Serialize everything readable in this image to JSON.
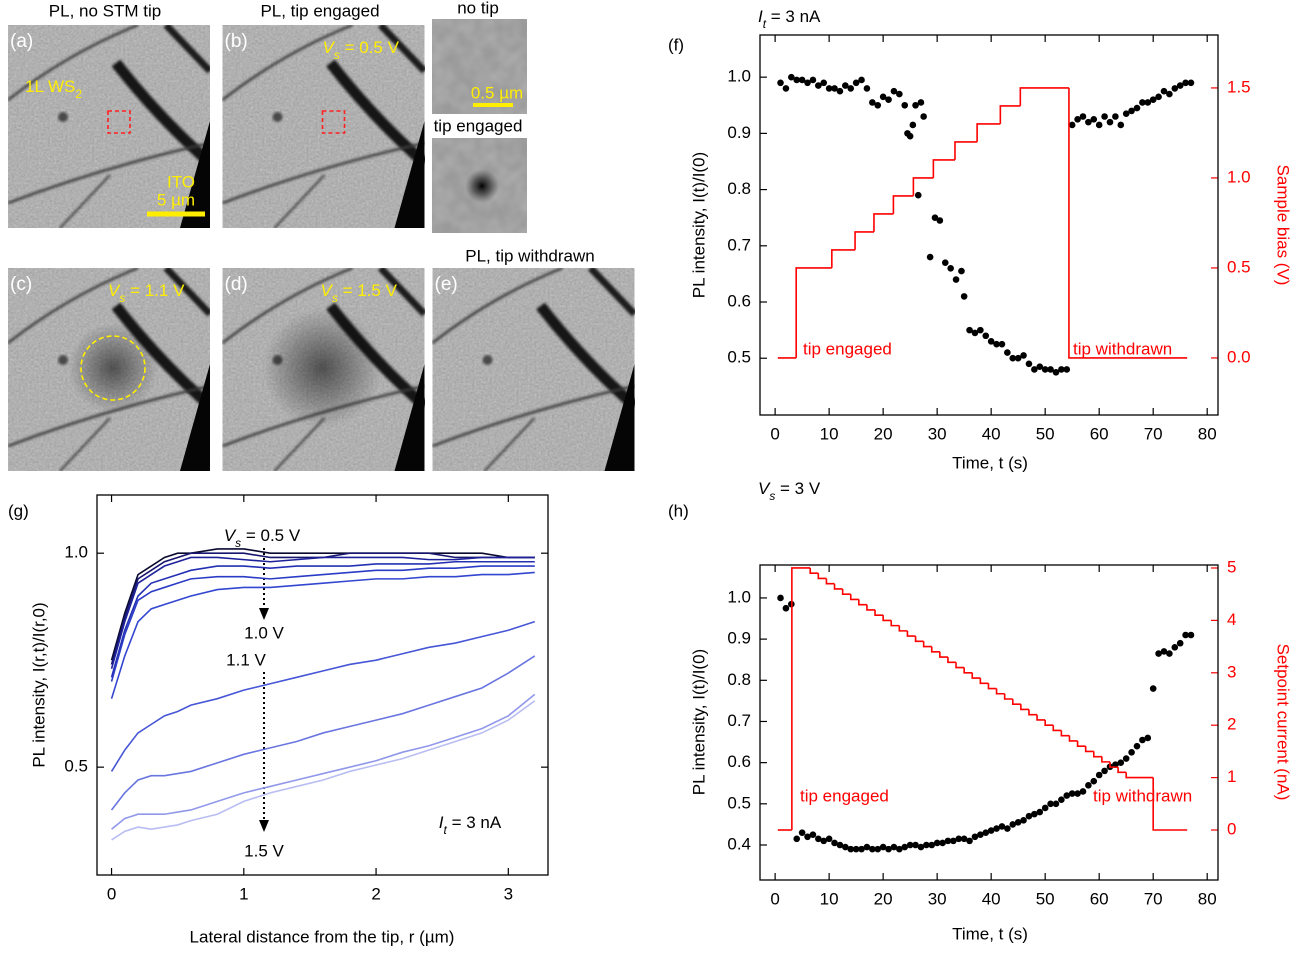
{
  "image_panels": {
    "a": {
      "title": "PL, no STM tip",
      "label": "(a)",
      "material": [
        "1L WS",
        "2"
      ],
      "substrate": "ITO",
      "scale_bar": "5 µm"
    },
    "b": {
      "title": "PL, tip engaged",
      "label": "(b)",
      "bias": [
        "V",
        "s",
        " = 0.5 V"
      ]
    },
    "insets": {
      "top": "no tip",
      "scale_bar": "0.5 µm",
      "bottom": "tip engaged"
    },
    "c": {
      "label": "(c)",
      "bias": [
        "V",
        "s",
        " = 1.1 V"
      ]
    },
    "d": {
      "label": "(d)",
      "bias": [
        "V",
        "s",
        " = 1.5 V"
      ]
    },
    "e": {
      "title": "PL, tip withdrawn",
      "label": "(e)"
    }
  },
  "chart_data": [
    {
      "type": "scatter",
      "panel_label": "(f)",
      "title": [
        "I",
        "t",
        " = 3 nA"
      ],
      "xlabel": "Time, t (s)",
      "ylabel": "PL intensity, I(t)/I(0)",
      "y2label": "Sample bias (V)",
      "y2color": "#ff0000",
      "xlim": [
        -2.8,
        82
      ],
      "xticks": [
        0,
        10,
        20,
        30,
        40,
        50,
        60,
        70,
        80
      ],
      "ylim": [
        0.399,
        1.075
      ],
      "yticks": [
        0.5,
        0.6,
        0.7,
        0.8,
        0.9,
        {
          "value": 1,
          "label": "1.0"
        }
      ],
      "y2lim": [
        -0.317,
        1.794
      ],
      "y2ticks": [
        {
          "value": 0,
          "label": "0.0"
        },
        0.5,
        {
          "value": 1,
          "label": "1.0"
        },
        1.5
      ],
      "annotations": [
        "tip engaged",
        "tip withdrawn"
      ],
      "series": [
        {
          "color": "#000000",
          "x": [
            1,
            2,
            3,
            4,
            5,
            6,
            7,
            8,
            9,
            10,
            11,
            12,
            13,
            14,
            15,
            16,
            17,
            18,
            19,
            20,
            21,
            22,
            23,
            24,
            24.5,
            25,
            25.5,
            26,
            26.5,
            27,
            27.5,
            28.7,
            29.6,
            30.5,
            31.5,
            32.5,
            33.5,
            34.5,
            35,
            36,
            37,
            38,
            39,
            40,
            41,
            42,
            43,
            44,
            45,
            46,
            47,
            48,
            49,
            50,
            51,
            52,
            53,
            54,
            55,
            56,
            57,
            58,
            59,
            60,
            61,
            62,
            63,
            64,
            65,
            66,
            67,
            68,
            69,
            70,
            71,
            72,
            73,
            74,
            75,
            76,
            77
          ],
          "values": [
            0.99,
            0.98,
            1.0,
            0.995,
            0.995,
            0.99,
            0.995,
            0.985,
            0.99,
            0.98,
            0.98,
            0.975,
            0.985,
            0.98,
            0.99,
            0.995,
            0.98,
            0.955,
            0.95,
            0.965,
            0.96,
            0.975,
            0.97,
            0.95,
            0.9,
            0.895,
            0.915,
            0.95,
            0.79,
            0.955,
            0.93,
            0.68,
            0.75,
            0.745,
            0.67,
            0.66,
            0.64,
            0.655,
            0.61,
            0.55,
            0.545,
            0.55,
            0.54,
            0.53,
            0.525,
            0.525,
            0.51,
            0.5,
            0.5,
            0.505,
            0.49,
            0.48,
            0.485,
            0.48,
            0.48,
            0.475,
            0.48,
            0.48,
            0.915,
            0.925,
            0.93,
            0.92,
            0.925,
            0.915,
            0.93,
            0.92,
            0.93,
            0.915,
            0.935,
            0.94,
            0.945,
            0.955,
            0.955,
            0.96,
            0.965,
            0.975,
            0.97,
            0.98,
            0.985,
            0.99,
            0.99
          ]
        },
        {
          "color": "#ff0000",
          "axis": "y2",
          "drawstyle": "steps-post",
          "x": [
            0.5,
            3.9,
            10.5,
            14.8,
            18.3,
            21.9,
            25.6,
            29.3,
            33.3,
            37.4,
            41.7,
            45.4,
            54.4,
            76.3
          ],
          "values": [
            0,
            0.5,
            0.6,
            0.7,
            0.8,
            0.9,
            1.0,
            1.1,
            1.2,
            1.3,
            1.4,
            1.5,
            0,
            0
          ]
        }
      ]
    },
    {
      "type": "line",
      "panel_label": "(g)",
      "xlabel": "Lateral distance from the tip, r (µm)",
      "ylabel": "PL intensity, I(r,t)/I(r,0)",
      "xlim": [
        -0.11,
        3.3
      ],
      "xticks": [
        0,
        1,
        2,
        3
      ],
      "ylim": [
        0.248,
        1.136
      ],
      "yticks": [
        0.5,
        {
          "value": 1,
          "label": "1.0"
        }
      ],
      "annotations": [
        [
          "V",
          "s",
          " = 0.5 V"
        ],
        "1.0 V",
        "1.1 V",
        "1.5 V",
        [
          "I",
          "t",
          " = 3 nA"
        ]
      ],
      "x": [
        0,
        0.1,
        0.2,
        0.3,
        0.4,
        0.5,
        0.6,
        0.8,
        1.0,
        1.2,
        1.4,
        1.6,
        1.8,
        2.0,
        2.2,
        2.4,
        2.6,
        2.8,
        3.0,
        3.2
      ],
      "series": [
        {
          "color": "#0a0a30",
          "values": [
            0.75,
            0.86,
            0.95,
            0.97,
            0.99,
            1.0,
            1.0,
            1.01,
            1.01,
            1.0,
            1.0,
            1.0,
            1.0,
            1.0,
            1.0,
            1.0,
            1.0,
            1.0,
            0.99,
            0.99
          ]
        },
        {
          "color": "#16166e",
          "values": [
            0.74,
            0.85,
            0.94,
            0.96,
            0.98,
            0.99,
            1.0,
            1.0,
            1.0,
            0.99,
            0.99,
            0.99,
            1.0,
            1.0,
            1.0,
            1.0,
            0.99,
            0.99,
            0.99,
            0.99
          ]
        },
        {
          "color": "#1e229a",
          "values": [
            0.73,
            0.84,
            0.93,
            0.95,
            0.97,
            0.98,
            0.99,
            0.99,
            0.985,
            0.98,
            0.985,
            0.99,
            0.99,
            0.99,
            0.99,
            0.985,
            0.985,
            0.99,
            0.99,
            0.99
          ]
        },
        {
          "color": "#2430b4",
          "values": [
            0.71,
            0.82,
            0.9,
            0.93,
            0.94,
            0.95,
            0.96,
            0.97,
            0.97,
            0.965,
            0.97,
            0.97,
            0.97,
            0.975,
            0.975,
            0.975,
            0.98,
            0.98,
            0.98,
            0.98
          ]
        },
        {
          "color": "#2a3cc6",
          "values": [
            0.7,
            0.81,
            0.89,
            0.91,
            0.92,
            0.93,
            0.94,
            0.945,
            0.945,
            0.94,
            0.945,
            0.95,
            0.955,
            0.96,
            0.96,
            0.965,
            0.965,
            0.97,
            0.97,
            0.97
          ]
        },
        {
          "color": "#3246d0",
          "values": [
            0.66,
            0.76,
            0.84,
            0.87,
            0.88,
            0.89,
            0.9,
            0.915,
            0.92,
            0.92,
            0.925,
            0.93,
            0.935,
            0.94,
            0.94,
            0.945,
            0.945,
            0.95,
            0.95,
            0.955
          ]
        },
        {
          "color": "#4656d6",
          "values": [
            0.49,
            0.54,
            0.58,
            0.6,
            0.62,
            0.63,
            0.645,
            0.66,
            0.68,
            0.695,
            0.71,
            0.725,
            0.74,
            0.75,
            0.765,
            0.78,
            0.79,
            0.805,
            0.82,
            0.84
          ]
        },
        {
          "color": "#6a76e0",
          "values": [
            0.4,
            0.44,
            0.47,
            0.48,
            0.48,
            0.485,
            0.49,
            0.51,
            0.53,
            0.545,
            0.56,
            0.58,
            0.595,
            0.61,
            0.625,
            0.645,
            0.665,
            0.685,
            0.72,
            0.76
          ]
        },
        {
          "color": "#9198ea",
          "values": [
            0.355,
            0.38,
            0.39,
            0.39,
            0.39,
            0.395,
            0.4,
            0.42,
            0.44,
            0.455,
            0.47,
            0.485,
            0.5,
            0.515,
            0.535,
            0.55,
            0.57,
            0.59,
            0.62,
            0.67
          ]
        },
        {
          "color": "#b9bdf2",
          "values": [
            0.33,
            0.35,
            0.36,
            0.355,
            0.36,
            0.365,
            0.375,
            0.39,
            0.42,
            0.44,
            0.455,
            0.47,
            0.49,
            0.505,
            0.52,
            0.54,
            0.56,
            0.58,
            0.61,
            0.655
          ]
        }
      ]
    },
    {
      "type": "scatter",
      "panel_label": "(h)",
      "title": [
        "V",
        "s",
        " = 3 V"
      ],
      "xlabel": "Time, t (s)",
      "ylabel": "PL intensity, I(t)/I(0)",
      "y2label": "Setpoint current (nA)",
      "y2color": "#ff0000",
      "xlim": [
        -2.8,
        82
      ],
      "xticks": [
        0,
        10,
        20,
        30,
        40,
        50,
        60,
        70,
        80
      ],
      "ylim": [
        0.315,
        1.08
      ],
      "yticks": [
        0.4,
        0.5,
        0.6,
        0.7,
        0.8,
        0.9,
        {
          "value": 1,
          "label": "1.0"
        }
      ],
      "y2lim": [
        -0.954,
        5.057
      ],
      "y2ticks": [
        0,
        1,
        2,
        3,
        4,
        5
      ],
      "annotations": [
        "tip engaged",
        "tip withdrawn"
      ],
      "series": [
        {
          "color": "#000000",
          "x": [
            1,
            2,
            3,
            4,
            5,
            6,
            7,
            8,
            9,
            10,
            11,
            12,
            13,
            14,
            15,
            16,
            17,
            18,
            19,
            20,
            21,
            22,
            23,
            24,
            25,
            26,
            27,
            28,
            29,
            30,
            31,
            32,
            33,
            34,
            35,
            36,
            37,
            38,
            39,
            40,
            41,
            42,
            43,
            44,
            45,
            46,
            47,
            48,
            49,
            50,
            51,
            52,
            53,
            54,
            55,
            56,
            57,
            58,
            59,
            60,
            61,
            62,
            63,
            64,
            65,
            66,
            67,
            68,
            69,
            70,
            71,
            72,
            73,
            74,
            75,
            76,
            77
          ],
          "values": [
            1.0,
            0.975,
            0.985,
            0.415,
            0.43,
            0.42,
            0.425,
            0.415,
            0.41,
            0.415,
            0.405,
            0.4,
            0.395,
            0.39,
            0.39,
            0.39,
            0.395,
            0.39,
            0.39,
            0.395,
            0.39,
            0.395,
            0.39,
            0.395,
            0.4,
            0.4,
            0.395,
            0.4,
            0.4,
            0.405,
            0.405,
            0.41,
            0.41,
            0.415,
            0.415,
            0.41,
            0.42,
            0.425,
            0.43,
            0.435,
            0.44,
            0.445,
            0.44,
            0.45,
            0.455,
            0.46,
            0.47,
            0.475,
            0.48,
            0.49,
            0.5,
            0.5,
            0.51,
            0.52,
            0.525,
            0.525,
            0.53,
            0.545,
            0.555,
            0.57,
            0.58,
            0.59,
            0.595,
            0.6,
            0.61,
            0.625,
            0.64,
            0.655,
            0.66,
            0.78,
            0.865,
            0.87,
            0.865,
            0.88,
            0.89,
            0.91,
            0.91
          ]
        },
        {
          "color": "#ff0000",
          "axis": "y2",
          "drawstyle": "steps-post",
          "x": [
            0.5,
            3.1,
            6.5,
            8,
            9.5,
            11,
            12.5,
            14,
            15.5,
            17,
            18.5,
            20,
            21.5,
            23,
            24.5,
            26,
            27.5,
            29,
            30.5,
            32,
            33.5,
            35,
            36.5,
            38,
            39.5,
            41,
            42.5,
            44,
            45.5,
            47,
            48.5,
            50,
            51.5,
            53,
            54.5,
            56,
            57.5,
            59,
            60.5,
            62,
            63.5,
            65,
            70,
            76.3
          ],
          "values": [
            0,
            5.0,
            4.9,
            4.8,
            4.7,
            4.6,
            4.5,
            4.4,
            4.3,
            4.2,
            4.1,
            4.0,
            3.9,
            3.8,
            3.7,
            3.6,
            3.5,
            3.4,
            3.3,
            3.2,
            3.1,
            3.0,
            2.9,
            2.8,
            2.7,
            2.6,
            2.5,
            2.4,
            2.3,
            2.2,
            2.1,
            2.0,
            1.9,
            1.8,
            1.7,
            1.6,
            1.5,
            1.4,
            1.3,
            1.2,
            1.1,
            1.0,
            0,
            0
          ]
        }
      ]
    }
  ]
}
